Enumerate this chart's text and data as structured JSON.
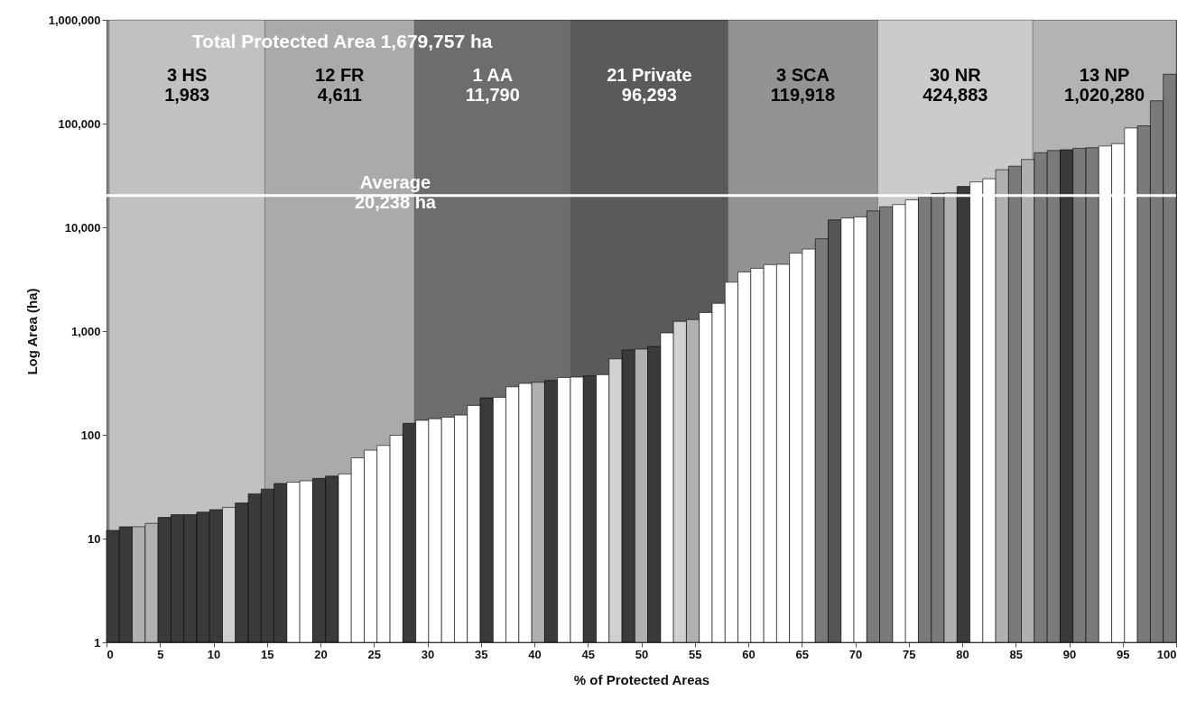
{
  "chart_data": {
    "type": "bar",
    "log": "y",
    "xlabel": "% of Protected Areas",
    "ylabel": "Log Area (ha)",
    "x": [
      0.6,
      1.81,
      3.01,
      4.22,
      5.42,
      6.63,
      7.83,
      9.04,
      10.24,
      11.45,
      12.65,
      13.86,
      15.06,
      16.27,
      17.47,
      18.67,
      19.88,
      21.08,
      22.29,
      23.49,
      24.7,
      25.9,
      27.11,
      28.31,
      29.52,
      30.72,
      31.93,
      33.13,
      34.34,
      35.54,
      36.75,
      37.95,
      39.16,
      40.36,
      41.57,
      42.77,
      43.98,
      45.18,
      46.39,
      47.59,
      48.8,
      50.0,
      51.2,
      52.41,
      53.61,
      54.82,
      56.02,
      57.23,
      58.43,
      59.64,
      60.84,
      62.05,
      63.25,
      64.46,
      65.66,
      66.87,
      68.07,
      69.28,
      70.48,
      71.69,
      72.89,
      74.1,
      75.3,
      76.51,
      77.71,
      78.92,
      80.12,
      81.33,
      82.53,
      83.73,
      84.94,
      86.14,
      87.35,
      88.55,
      89.76,
      90.96,
      92.17,
      93.37,
      94.58,
      95.78,
      96.99,
      98.19,
      99.4
    ],
    "values": [
      12,
      13,
      13,
      14,
      16,
      17,
      17,
      18,
      19,
      20,
      22,
      27,
      30,
      34,
      35,
      36,
      38,
      40,
      42,
      60,
      71,
      79,
      99,
      129,
      138,
      143,
      148,
      155,
      192,
      227,
      230,
      290,
      313,
      321,
      334,
      357,
      360,
      370,
      380,
      540,
      658,
      670,
      710,
      960,
      1240,
      1290,
      1510,
      1850,
      2960,
      3720,
      4030,
      4370,
      4400,
      5640,
      6170,
      7750,
      11790,
      12300,
      12600,
      14400,
      15800,
      16600,
      18400,
      19500,
      21300,
      21500,
      24800,
      27400,
      29400,
      35900,
      38900,
      45100,
      52400,
      55000,
      56000,
      57800,
      58500,
      60800,
      64000,
      90600,
      95100,
      166000,
      299000
    ],
    "colors": [
      "#3a3a3a",
      "#3a3a3a",
      "#b0b0b0",
      "#b0b0b0",
      "#3a3a3a",
      "#3a3a3a",
      "#3a3a3a",
      "#3a3a3a",
      "#3a3a3a",
      "#d0d0d0",
      "#3a3a3a",
      "#3a3a3a",
      "#3a3a3a",
      "#3a3a3a",
      "#ffffff",
      "#ffffff",
      "#3a3a3a",
      "#3a3a3a",
      "#ffffff",
      "#ffffff",
      "#ffffff",
      "#ffffff",
      "#ffffff",
      "#3a3a3a",
      "#ffffff",
      "#ffffff",
      "#ffffff",
      "#ffffff",
      "#ffffff",
      "#3a3a3a",
      "#ffffff",
      "#ffffff",
      "#ffffff",
      "#b0b0b0",
      "#3a3a3a",
      "#ffffff",
      "#ffffff",
      "#3a3a3a",
      "#ffffff",
      "#d0d0d0",
      "#3a3a3a",
      "#b0b0b0",
      "#3a3a3a",
      "#ffffff",
      "#d0d0d0",
      "#b0b0b0",
      "#ffffff",
      "#ffffff",
      "#ffffff",
      "#ffffff",
      "#ffffff",
      "#ffffff",
      "#ffffff",
      "#ffffff",
      "#ffffff",
      "#7a7a7a",
      "#555555",
      "#ffffff",
      "#ffffff",
      "#7a7a7a",
      "#7a7a7a",
      "#ffffff",
      "#ffffff",
      "#7a7a7a",
      "#7a7a7a",
      "#b0b0b0",
      "#3a3a3a",
      "#ffffff",
      "#ffffff",
      "#b0b0b0",
      "#7a7a7a",
      "#b0b0b0",
      "#7a7a7a",
      "#7a7a7a",
      "#3a3a3a",
      "#7a7a7a",
      "#7a7a7a",
      "#ffffff",
      "#ffffff",
      "#ffffff",
      "#7a7a7a",
      "#7a7a7a",
      "#7a7a7a"
    ],
    "xlim": [
      0,
      100
    ],
    "xticks": [
      0,
      5,
      10,
      15,
      20,
      25,
      30,
      35,
      40,
      45,
      50,
      55,
      60,
      65,
      70,
      75,
      80,
      85,
      90,
      95,
      100
    ],
    "ylim": [
      1,
      1000000
    ],
    "yticks": [
      1,
      10,
      100,
      {
        "value": 1000,
        "label": "1,000"
      },
      {
        "value": 10000,
        "label": "10,000"
      },
      {
        "value": 100000,
        "label": "100,000"
      },
      {
        "value": 1000000,
        "label": "1,000,000"
      }
    ],
    "bands": [
      {
        "axis": "x",
        "from": 0.25,
        "to": 14.8,
        "label": "3 HS\n1,983",
        "color": "#eeeeee"
      },
      {
        "axis": "x",
        "from": 14.8,
        "to": 28.8,
        "label": "12 FR\n4,611",
        "color": "#c4c4c4"
      },
      {
        "axis": "x",
        "from": 28.8,
        "to": 43.4,
        "label": "1 AA\n11,790",
        "color": "#555555"
      },
      {
        "axis": "x",
        "from": 43.4,
        "to": 58.1,
        "label": "21 Private\n96,293",
        "color": "#333333"
      },
      {
        "axis": "x",
        "from": 58.1,
        "to": 72.1,
        "label": "3 SCA\n119,918",
        "color": "#9a9a9a"
      },
      {
        "axis": "x",
        "from": 72.1,
        "to": 86.6,
        "label": "30 NR\n424,883",
        "color": "#ffffff"
      },
      {
        "axis": "x",
        "from": 86.6,
        "to": 100,
        "label": "13 NP\n1,020,280",
        "color": "#d4d4d4"
      }
    ],
    "ref_lines": [
      {
        "axis": "y",
        "value": 20238,
        "label": "Average\n20,238 ha",
        "color": "#ffffff"
      }
    ],
    "annotations": [
      "Total Protected Area 1,679,757 ha"
    ]
  }
}
